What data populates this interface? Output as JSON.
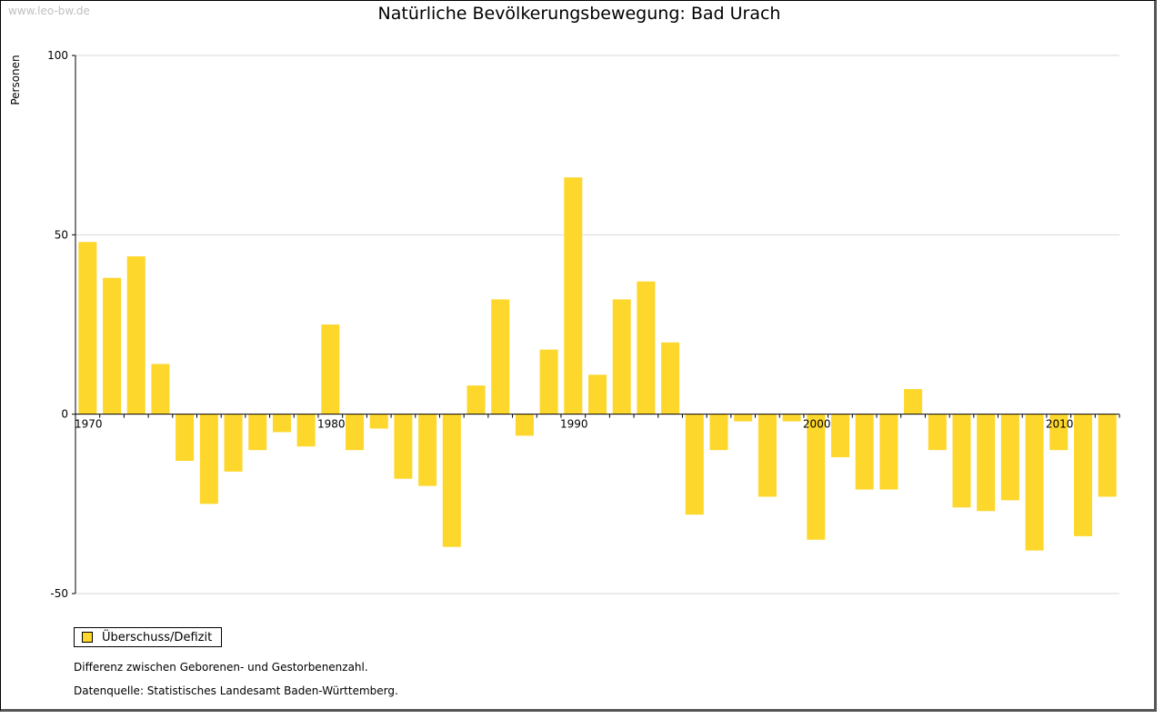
{
  "header": {
    "watermark": "www.leo-bw.de",
    "title": "Natürliche Bevölkerungsbewegung: Bad Urach"
  },
  "legend": {
    "label": "Überschuss/Defizit"
  },
  "notes": {
    "line1": "Differenz zwischen Geborenen- und Gestorbenenzahl.",
    "line2": "Datenquelle: Statistisches Landesamt Baden-Württemberg."
  },
  "colors": {
    "bar": "#fdd72b",
    "grid": "#d9d9d9",
    "axis": "#000000"
  },
  "chart_data": {
    "type": "bar",
    "title": "Natürliche Bevölkerungsbewegung: Bad Urach",
    "ylabel": "Personen",
    "xlabel": "",
    "ylim": [
      -50,
      100
    ],
    "yticks": [
      -50,
      0,
      50,
      100
    ],
    "xtick_labels": [
      "1970",
      "1980",
      "1990",
      "2000",
      "2010"
    ],
    "grid": true,
    "legend_position": "bottom-left",
    "series": [
      {
        "name": "Überschuss/Defizit",
        "categories": [
          1970,
          1971,
          1972,
          1973,
          1974,
          1975,
          1976,
          1977,
          1978,
          1979,
          1980,
          1981,
          1982,
          1983,
          1984,
          1985,
          1986,
          1987,
          1988,
          1989,
          1990,
          1991,
          1992,
          1993,
          1994,
          1995,
          1996,
          1997,
          1998,
          1999,
          2000,
          2001,
          2002,
          2003,
          2004,
          2005,
          2006,
          2007,
          2008,
          2009,
          2010,
          2011,
          2012
        ],
        "values": [
          48,
          38,
          44,
          14,
          -13,
          -25,
          -16,
          -10,
          -5,
          -9,
          25,
          -10,
          -4,
          -18,
          -20,
          -37,
          8,
          32,
          -6,
          18,
          66,
          11,
          32,
          37,
          20,
          -28,
          -10,
          -2,
          -23,
          -2,
          -35,
          -12,
          -21,
          -21,
          7,
          -10,
          -26,
          -27,
          -24,
          -38,
          -10,
          -34,
          -23
        ]
      }
    ]
  }
}
